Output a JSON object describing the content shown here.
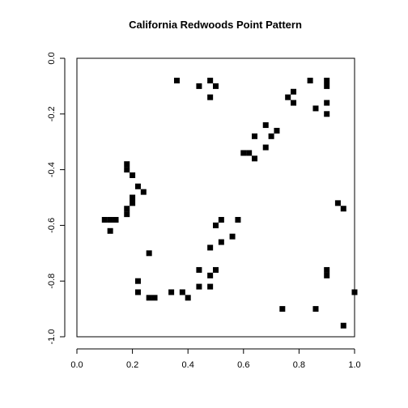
{
  "chart_data": {
    "type": "scatter",
    "title": "California Redwoods Point Pattern",
    "xlabel": "",
    "ylabel": "",
    "xlim": [
      0.0,
      1.0
    ],
    "ylim": [
      -1.0,
      0.0
    ],
    "x_ticks": [
      "0.0",
      "0.2",
      "0.4",
      "0.6",
      "0.8",
      "1.0"
    ],
    "y_ticks": [
      "0.0",
      "-0.2",
      "-0.4",
      "-0.6",
      "-0.8",
      "-1.0"
    ],
    "marker": "square",
    "color": "#000000",
    "grid": false,
    "points": [
      {
        "x": 0.36,
        "y": -0.08
      },
      {
        "x": 0.44,
        "y": -0.1
      },
      {
        "x": 0.48,
        "y": -0.08
      },
      {
        "x": 0.5,
        "y": -0.1
      },
      {
        "x": 0.48,
        "y": -0.14
      },
      {
        "x": 0.84,
        "y": -0.08
      },
      {
        "x": 0.9,
        "y": -0.08
      },
      {
        "x": 0.9,
        "y": -0.1
      },
      {
        "x": 0.76,
        "y": -0.14
      },
      {
        "x": 0.78,
        "y": -0.12
      },
      {
        "x": 0.78,
        "y": -0.16
      },
      {
        "x": 0.9,
        "y": -0.16
      },
      {
        "x": 0.86,
        "y": -0.18
      },
      {
        "x": 0.9,
        "y": -0.2
      },
      {
        "x": 0.68,
        "y": -0.24
      },
      {
        "x": 0.72,
        "y": -0.26
      },
      {
        "x": 0.7,
        "y": -0.28
      },
      {
        "x": 0.64,
        "y": -0.28
      },
      {
        "x": 0.68,
        "y": -0.32
      },
      {
        "x": 0.6,
        "y": -0.34
      },
      {
        "x": 0.62,
        "y": -0.34
      },
      {
        "x": 0.64,
        "y": -0.36
      },
      {
        "x": 0.18,
        "y": -0.38
      },
      {
        "x": 0.18,
        "y": -0.4
      },
      {
        "x": 0.2,
        "y": -0.42
      },
      {
        "x": 0.22,
        "y": -0.46
      },
      {
        "x": 0.24,
        "y": -0.48
      },
      {
        "x": 0.2,
        "y": -0.5
      },
      {
        "x": 0.2,
        "y": -0.52
      },
      {
        "x": 0.18,
        "y": -0.54
      },
      {
        "x": 0.18,
        "y": -0.56
      },
      {
        "x": 0.1,
        "y": -0.58
      },
      {
        "x": 0.12,
        "y": -0.58
      },
      {
        "x": 0.14,
        "y": -0.58
      },
      {
        "x": 0.12,
        "y": -0.62
      },
      {
        "x": 0.94,
        "y": -0.52
      },
      {
        "x": 0.96,
        "y": -0.54
      },
      {
        "x": 0.52,
        "y": -0.58
      },
      {
        "x": 0.58,
        "y": -0.58
      },
      {
        "x": 0.5,
        "y": -0.6
      },
      {
        "x": 0.56,
        "y": -0.64
      },
      {
        "x": 0.52,
        "y": -0.66
      },
      {
        "x": 0.48,
        "y": -0.68
      },
      {
        "x": 0.26,
        "y": -0.7
      },
      {
        "x": 0.44,
        "y": -0.76
      },
      {
        "x": 0.5,
        "y": -0.76
      },
      {
        "x": 0.48,
        "y": -0.78
      },
      {
        "x": 0.22,
        "y": -0.8
      },
      {
        "x": 0.44,
        "y": -0.82
      },
      {
        "x": 0.48,
        "y": -0.82
      },
      {
        "x": 0.22,
        "y": -0.84
      },
      {
        "x": 0.34,
        "y": -0.84
      },
      {
        "x": 0.38,
        "y": -0.84
      },
      {
        "x": 0.26,
        "y": -0.86
      },
      {
        "x": 0.28,
        "y": -0.86
      },
      {
        "x": 0.4,
        "y": -0.86
      },
      {
        "x": 0.9,
        "y": -0.76
      },
      {
        "x": 0.9,
        "y": -0.78
      },
      {
        "x": 0.74,
        "y": -0.9
      },
      {
        "x": 0.86,
        "y": -0.9
      },
      {
        "x": 1.0,
        "y": -0.84
      },
      {
        "x": 0.96,
        "y": -0.96
      }
    ]
  }
}
